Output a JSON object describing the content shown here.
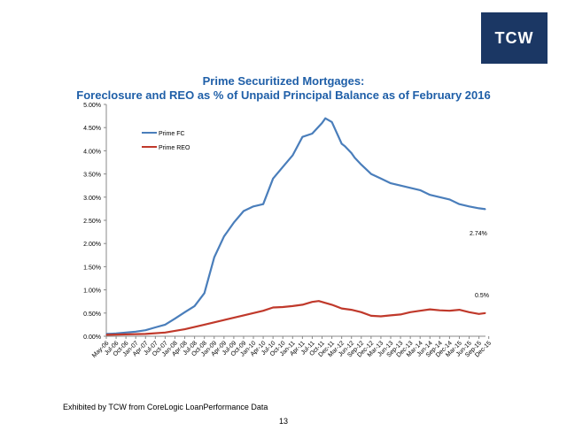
{
  "logo": {
    "text": "TCW"
  },
  "page": {
    "source": "Exhibited by TCW from CoreLogic LoanPerformance Data",
    "number": "13"
  },
  "chart_data": {
    "type": "line",
    "title": "Prime Securitized Mortgages:",
    "subtitle": "Foreclosure and REO as % of Unpaid Principal Balance as of February 2016",
    "xlabel": "",
    "ylabel": "",
    "ylim": [
      0,
      5
    ],
    "y_ticks": [
      "0.00%",
      "0.50%",
      "1.00%",
      "1.50%",
      "2.00%",
      "2.50%",
      "3.00%",
      "3.50%",
      "4.00%",
      "4.50%",
      "5.00%"
    ],
    "x_ticks": [
      "May-06",
      "Jul-06",
      "Oct-06",
      "Jan-07",
      "Apr-07",
      "Jul-07",
      "Oct-07",
      "Jan-08",
      "Apr-08",
      "Jul-08",
      "Oct-08",
      "Jan-09",
      "Apr-09",
      "Jul-09",
      "Oct-09",
      "Jan-10",
      "Apr-10",
      "Jul-10",
      "Oct-10",
      "Jan-11",
      "Apr-11",
      "Jul-11",
      "Oct-11",
      "Dec-11",
      "Mar-12",
      "Jun-12",
      "Sep-12",
      "Dec-12",
      "Mar-13",
      "Jun-13",
      "Sep-13",
      "Dec-13",
      "Mar-14",
      "Jun-14",
      "Sep-14",
      "Dec-14",
      "Mar-15",
      "Jun-15",
      "Sep-15",
      "Dec-15"
    ],
    "grid": false,
    "legend_position": "top-left",
    "annotations": [
      {
        "text": "2.74%",
        "series": "Prime FC"
      },
      {
        "text": "0.5%",
        "series": "Prime REO"
      }
    ],
    "series": [
      {
        "name": "Prime FC",
        "color": "#4a7ebb",
        "x": [
          0,
          3,
          6,
          9,
          12,
          15,
          18,
          21,
          24,
          27,
          30,
          33,
          36,
          39,
          42,
          45,
          48,
          51,
          54,
          57,
          60,
          63,
          66,
          67,
          69,
          72,
          73,
          75,
          76,
          78,
          81,
          84,
          87,
          90,
          93,
          96,
          99,
          102,
          105,
          108,
          111,
          114,
          116
        ],
        "values": [
          0.05,
          0.06,
          0.08,
          0.1,
          0.13,
          0.19,
          0.25,
          0.38,
          0.52,
          0.65,
          0.93,
          1.7,
          2.15,
          2.45,
          2.7,
          2.8,
          2.85,
          3.4,
          3.65,
          3.9,
          4.3,
          4.37,
          4.6,
          4.7,
          4.62,
          4.15,
          4.1,
          3.95,
          3.85,
          3.7,
          3.5,
          3.4,
          3.3,
          3.25,
          3.2,
          3.15,
          3.05,
          3.0,
          2.95,
          2.85,
          2.8,
          2.76,
          2.74
        ]
      },
      {
        "name": "Prime REO",
        "color": "#c0392b",
        "x": [
          0,
          6,
          12,
          18,
          24,
          30,
          36,
          42,
          48,
          51,
          54,
          57,
          60,
          63,
          65,
          69,
          72,
          75,
          78,
          81,
          84,
          87,
          90,
          93,
          96,
          99,
          102,
          105,
          108,
          111,
          114,
          116
        ],
        "values": [
          0.03,
          0.04,
          0.05,
          0.08,
          0.15,
          0.25,
          0.35,
          0.45,
          0.55,
          0.62,
          0.63,
          0.65,
          0.68,
          0.74,
          0.76,
          0.68,
          0.6,
          0.57,
          0.52,
          0.44,
          0.43,
          0.45,
          0.47,
          0.52,
          0.55,
          0.58,
          0.56,
          0.55,
          0.57,
          0.52,
          0.48,
          0.5
        ]
      }
    ]
  }
}
